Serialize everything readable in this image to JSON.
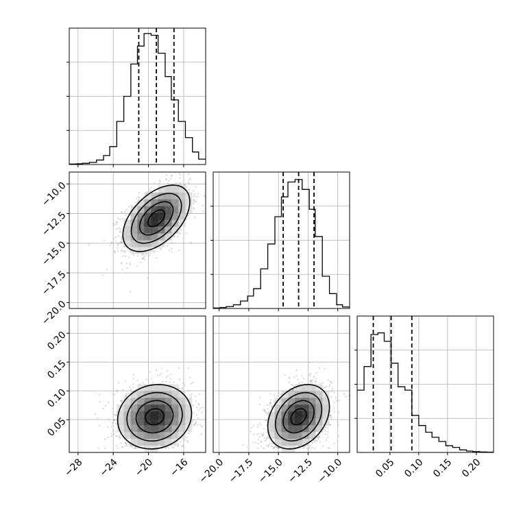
{
  "chart_data": {
    "type": "corner",
    "title": "",
    "parameters": [
      {
        "label": "",
        "ticks": [
          -28,
          -24,
          -20,
          -16
        ],
        "tick_labels": [
          "−28",
          "−24",
          "−20",
          "−16"
        ],
        "range": [
          -29,
          -13.5
        ]
      },
      {
        "label": "",
        "ticks": [
          -20.0,
          -17.5,
          -15.0,
          -12.5,
          -10.0
        ],
        "tick_labels": [
          "−20.0",
          "−17.5",
          "−15.0",
          "−12.5",
          "−10.0"
        ],
        "range": [
          -20.5,
          -9.0
        ]
      },
      {
        "label": "",
        "ticks": [
          0.05,
          0.1,
          0.15,
          0.2
        ],
        "tick_labels": [
          "0.05",
          "0.10",
          "0.15",
          "0.20"
        ],
        "range": [
          -0.007,
          0.23
        ]
      }
    ],
    "quantiles": [
      [
        -21.1,
        -19.1,
        -17.1
      ],
      [
        -14.6,
        -13.3,
        -12.0
      ],
      [
        0.021,
        0.052,
        0.088
      ]
    ],
    "histograms": [
      {
        "bin_edges": [
          -29.0,
          -28.2,
          -27.5,
          -26.7,
          -25.9,
          -25.1,
          -24.4,
          -23.6,
          -22.8,
          -22.0,
          -21.25,
          -20.5,
          -19.7,
          -18.9,
          -18.1,
          -17.4,
          -16.6,
          -15.8,
          -15.0,
          -14.3,
          -13.5
        ],
        "counts": [
          0.3,
          0.4,
          0.7,
          1.2,
          2.5,
          5.0,
          10.0,
          24.0,
          38.0,
          56.0,
          66.0,
          73.0,
          72.0,
          62.0,
          49.0,
          36.0,
          24.0,
          15.0,
          7.0,
          3.0
        ],
        "ylim": [
          0,
          76
        ]
      },
      {
        "bin_edges": [
          -20.5,
          -19.9,
          -19.4,
          -18.8,
          -18.2,
          -17.6,
          -17.1,
          -16.5,
          -15.9,
          -15.3,
          -14.75,
          -14.2,
          -13.6,
          -13.0,
          -12.4,
          -11.9,
          -11.3,
          -10.7,
          -10.1,
          -9.6,
          -9.0
        ],
        "counts": [
          0.4,
          0.8,
          1.5,
          3.0,
          6.0,
          10.0,
          16.0,
          32.0,
          52.0,
          74.0,
          90.0,
          102.0,
          104.0,
          96.0,
          80.0,
          58.0,
          26.0,
          12.0,
          3.0,
          1.2
        ],
        "ylim": [
          0,
          110
        ]
      },
      {
        "bin_edges": [
          -0.007,
          0.005,
          0.017,
          0.029,
          0.04,
          0.052,
          0.064,
          0.076,
          0.088,
          0.1,
          0.112,
          0.123,
          0.135,
          0.147,
          0.159,
          0.171,
          0.183,
          0.194,
          0.206,
          0.218,
          0.23
        ],
        "counts": [
          37.0,
          51.0,
          70.0,
          71.0,
          66.0,
          53.0,
          39.0,
          37.0,
          22.0,
          16.0,
          12.0,
          9.0,
          6.5,
          4.0,
          3.0,
          1.5,
          0.8,
          0.5,
          0.3,
          0.2
        ],
        "ylim": [
          0,
          81
        ]
      }
    ],
    "pairs": [
      {
        "x_param": 0,
        "y_param": 1,
        "mean": [
          -19.1,
          -12.9
        ],
        "sd": [
          1.9,
          1.4
        ],
        "corr": 0.5
      },
      {
        "x_param": 0,
        "y_param": 2,
        "mean": [
          -19.3,
          0.055
        ],
        "sd": [
          2.1,
          0.028
        ],
        "corr": 0.1
      },
      {
        "x_param": 1,
        "y_param": 2,
        "mean": [
          -13.3,
          0.055
        ],
        "sd": [
          1.3,
          0.028
        ],
        "corr": 0.3
      }
    ],
    "contour_levels_sigma": [
      0.5,
      1.0,
      1.5,
      2.0
    ],
    "grid": true,
    "colors": {
      "line": "#000000",
      "grid": "#b0b0b0",
      "points": "#888888",
      "density": "#000000"
    }
  }
}
